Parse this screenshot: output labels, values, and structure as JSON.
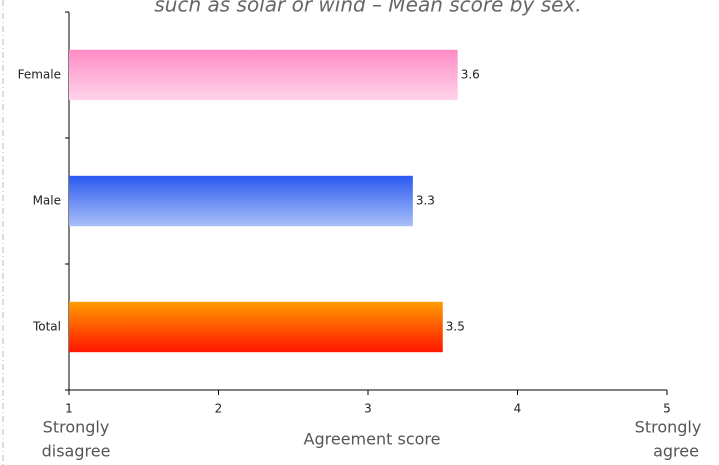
{
  "chart_data": {
    "type": "hbar",
    "title": "such as solar or wind – Mean score by sex.",
    "categories": [
      "Female",
      "Male",
      "Total"
    ],
    "values": [
      3.6,
      3.3,
      3.5
    ],
    "colors": [
      [
        "#ff8cc6",
        "#ffd4ea"
      ],
      [
        "#2b59f0",
        "#aac0f9"
      ],
      [
        "#ff9c00",
        "#ff1500"
      ]
    ],
    "xlim": [
      1,
      5
    ],
    "xticks": [
      1,
      2,
      3,
      4,
      5
    ],
    "xlabel": "Agreement score",
    "x_end_labels": {
      "left": [
        "Strongly",
        "disagree"
      ],
      "right": [
        "Strongly",
        "agree"
      ]
    }
  }
}
